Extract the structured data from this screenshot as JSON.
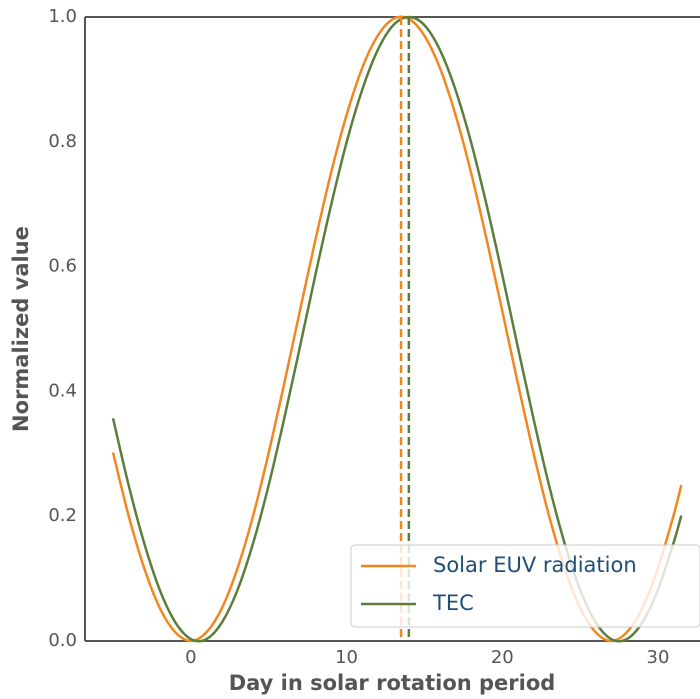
{
  "chart_data": {
    "type": "line",
    "xlabel": "Day in solar rotation period",
    "ylabel": "Normalized value",
    "x": [
      -5,
      -4,
      -3,
      -2,
      -1,
      0,
      1,
      2,
      3,
      4,
      5,
      6,
      7,
      8,
      9,
      10,
      11,
      12,
      13,
      14,
      15,
      16,
      17,
      18,
      19,
      20,
      21,
      22,
      23,
      24,
      25,
      26,
      27,
      28,
      29,
      30,
      31,
      31.5
    ],
    "series": [
      {
        "name": "Solar EUV radiation",
        "color": "#f5861f",
        "values": [
          0.302,
          0.201,
          0.117,
          0.053,
          0.014,
          0,
          0.014,
          0.053,
          0.117,
          0.201,
          0.302,
          0.413,
          0.529,
          0.643,
          0.75,
          0.843,
          0.918,
          0.97,
          0.997,
          0.997,
          0.97,
          0.918,
          0.843,
          0.75,
          0.643,
          0.529,
          0.413,
          0.302,
          0.201,
          0.117,
          0.053,
          0.014,
          0,
          0.014,
          0.053,
          0.117,
          0.201,
          0.25
        ]
      },
      {
        "name": "TEC",
        "color": "#5b7e3b",
        "values": [
          0.357,
          0.25,
          0.157,
          0.082,
          0.03,
          0.003,
          0.003,
          0.03,
          0.082,
          0.157,
          0.25,
          0.357,
          0.471,
          0.587,
          0.698,
          0.799,
          0.883,
          0.947,
          0.987,
          1,
          0.987,
          0.947,
          0.883,
          0.799,
          0.698,
          0.587,
          0.471,
          0.357,
          0.25,
          0.157,
          0.082,
          0.03,
          0.003,
          0.003,
          0.03,
          0.082,
          0.157,
          0.201
        ]
      }
    ],
    "vlines": [
      {
        "value": 13.5,
        "color": "#f5861f"
      },
      {
        "value": 14,
        "color": "#5b7e3b"
      }
    ],
    "xlim": [
      -6.8,
      32.7
    ],
    "xticks": [
      0,
      10,
      20,
      30
    ],
    "ylim": [
      0,
      1
    ],
    "yticks": [
      {
        "value": 0,
        "label": "0.0"
      },
      0.2,
      0.4,
      0.6,
      0.8,
      {
        "value": 1,
        "label": "1.0"
      }
    ],
    "legend": "lower right"
  }
}
